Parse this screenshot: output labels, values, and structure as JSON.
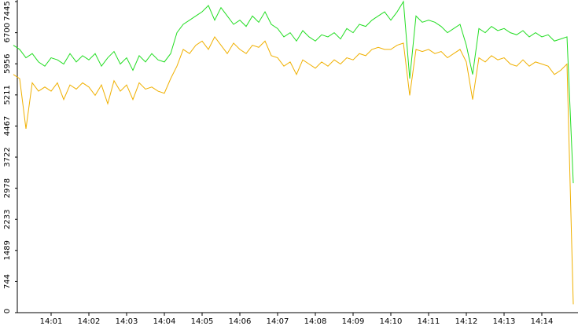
{
  "chart_data": {
    "type": "line",
    "categories": [
      null,
      null,
      null,
      null,
      null,
      null,
      "14:01",
      null,
      null,
      null,
      null,
      null,
      "14:02",
      null,
      null,
      null,
      null,
      null,
      "14:03",
      null,
      null,
      null,
      null,
      null,
      "14:04",
      null,
      null,
      null,
      null,
      null,
      "14:05",
      null,
      null,
      null,
      null,
      null,
      "14:06",
      null,
      null,
      null,
      null,
      null,
      "14:07",
      null,
      null,
      null,
      null,
      null,
      "14:08",
      null,
      null,
      null,
      null,
      null,
      "14:09",
      null,
      null,
      null,
      null,
      null,
      "14:10",
      null,
      null,
      null,
      null,
      null,
      "14:11",
      null,
      null,
      null,
      null,
      null,
      "14:12",
      null,
      null,
      null,
      null,
      null,
      "14:13",
      null,
      null,
      null,
      null,
      null,
      "14:14",
      null,
      null,
      null,
      null,
      null
    ],
    "series": [
      {
        "color": "#22dd22",
        "values": [
          6400,
          6300,
          6100,
          6200,
          6000,
          5900,
          6100,
          6050,
          5950,
          6200,
          6000,
          6150,
          6050,
          6200,
          5900,
          6100,
          6250,
          5950,
          6100,
          5800,
          6150,
          6000,
          6200,
          6050,
          6000,
          6200,
          6700,
          6900,
          7000,
          7100,
          7200,
          7350,
          7000,
          7300,
          7100,
          6900,
          7000,
          6850,
          7100,
          6950,
          7200,
          6900,
          6800,
          6600,
          6700,
          6500,
          6750,
          6600,
          6500,
          6650,
          6600,
          6700,
          6550,
          6800,
          6700,
          6900,
          6850,
          7000,
          7100,
          7200,
          7000,
          7200,
          7445,
          5600,
          7100,
          6950,
          7000,
          6950,
          6850,
          6700,
          6800,
          6900,
          6400,
          5700,
          6800,
          6700,
          6850,
          6750,
          6800,
          6700,
          6650,
          6750,
          6600,
          6700,
          6600,
          6650,
          6500,
          6550,
          6600,
          3100
        ]
      },
      {
        "color": "#f0b000",
        "values": [
          5700,
          5600,
          4400,
          5500,
          5300,
          5400,
          5300,
          5500,
          5100,
          5450,
          5350,
          5500,
          5400,
          5200,
          5450,
          5000,
          5550,
          5300,
          5450,
          5100,
          5500,
          5350,
          5400,
          5300,
          5250,
          5600,
          5900,
          6300,
          6200,
          6400,
          6500,
          6300,
          6600,
          6400,
          6200,
          6450,
          6300,
          6200,
          6400,
          6350,
          6500,
          6150,
          6100,
          5900,
          6000,
          5700,
          6050,
          5950,
          5850,
          6000,
          5900,
          6050,
          5950,
          6100,
          6050,
          6200,
          6150,
          6300,
          6350,
          6300,
          6300,
          6400,
          6450,
          5200,
          6300,
          6250,
          6300,
          6200,
          6250,
          6100,
          6200,
          6300,
          6000,
          5100,
          6100,
          6000,
          6150,
          6050,
          6100,
          5950,
          5900,
          6050,
          5900,
          6000,
          5950,
          5900,
          5700,
          5800,
          5950,
          200
        ]
      }
    ],
    "ylim": [
      0,
      7445
    ],
    "yticks": [
      0,
      744,
      1489,
      2233,
      2978,
      3722,
      4467,
      5211,
      5956,
      6700,
      7445
    ]
  }
}
